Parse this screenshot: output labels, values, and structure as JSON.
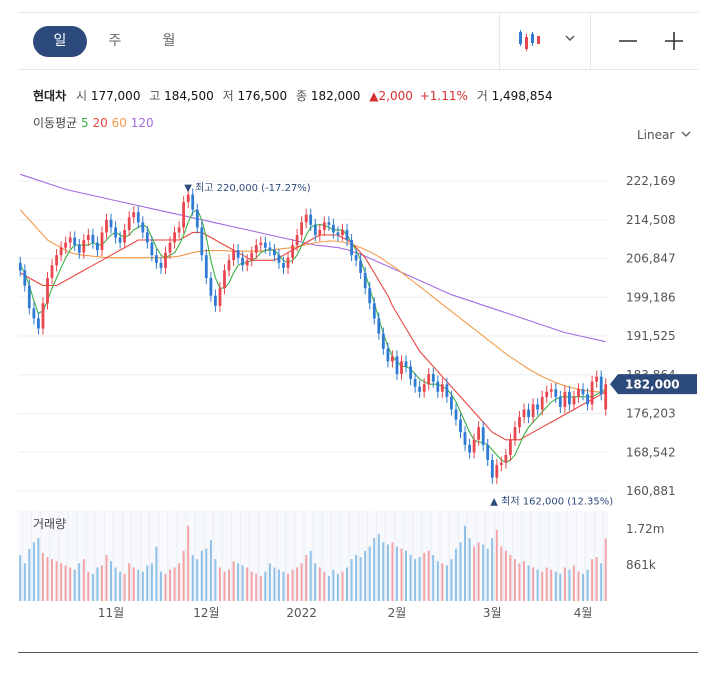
{
  "tabs": [
    "일",
    "주",
    "월"
  ],
  "active_tab": 0,
  "toolbar": {
    "chart_icon": "candlestick-icon",
    "dropdown_icon": "chevron-down-icon",
    "zoom_out_icon": "minus-icon",
    "zoom_in_icon": "plus-icon"
  },
  "stock": {
    "name": "현대차",
    "open_label": "시",
    "open": "177,000",
    "high_label": "고",
    "high": "184,500",
    "low_label": "저",
    "low": "176,500",
    "close_label": "종",
    "close": "182,000",
    "change": "▲2,000",
    "change_pct": "+1.11%",
    "volume_label": "거",
    "volume": "1,498,854"
  },
  "ma_legend": {
    "title": "이동평균",
    "items": [
      {
        "label": "5",
        "color": "#3cb043"
      },
      {
        "label": "20",
        "color": "#e8463c"
      },
      {
        "label": "60",
        "color": "#f39a4a"
      },
      {
        "label": "120",
        "color": "#a46be0"
      }
    ]
  },
  "scale_label": "Linear",
  "colors": {
    "up": "#e8474f",
    "down": "#2f7ad3",
    "badge": "#2d4a7c",
    "ma5": "#3cb043",
    "ma20": "#e8463c",
    "ma60": "#f39a4a",
    "ma120": "#a46be0",
    "vol_up": "#f3a3a6",
    "vol_down": "#8ec0e8"
  },
  "chart_data": {
    "type": "candlestick",
    "y_ticks": [
      "222,169",
      "214,508",
      "206,847",
      "199,186",
      "191,525",
      "183,864",
      "176,203",
      "168,542",
      "160,881"
    ],
    "ylim": [
      160881,
      222169
    ],
    "x_ticks": [
      "11월",
      "12월",
      "2022",
      "2월",
      "3월",
      "4월"
    ],
    "current_price": "182,000",
    "annotations": {
      "high_prefix": "▼ 최고",
      "high": "220,000 (-17.27%)",
      "low_prefix": "▲ 최저",
      "low": "162,000 (12.35%)"
    },
    "closes": [
      204500,
      201500,
      197000,
      195000,
      193000,
      198000,
      203000,
      205500,
      207500,
      209000,
      210000,
      211000,
      209500,
      208000,
      210500,
      211500,
      210000,
      208500,
      212000,
      214500,
      213000,
      211000,
      210000,
      212500,
      215000,
      216000,
      214000,
      212000,
      210000,
      207500,
      206000,
      205000,
      208000,
      210000,
      212000,
      213000,
      218000,
      219500,
      216500,
      213000,
      207500,
      203000,
      199500,
      197500,
      201000,
      204500,
      206500,
      208500,
      207000,
      205500,
      206500,
      208000,
      209500,
      210000,
      209000,
      208500,
      207500,
      206000,
      205000,
      207000,
      209500,
      211500,
      214000,
      215500,
      213500,
      211500,
      212500,
      214000,
      213500,
      212000,
      211500,
      212500,
      210500,
      207500,
      206500,
      204000,
      201000,
      198000,
      195000,
      192000,
      189000,
      186500,
      187500,
      184000,
      186500,
      185500,
      183000,
      181500,
      180500,
      182000,
      184000,
      182500,
      180500,
      182000,
      179500,
      177000,
      175000,
      172500,
      170000,
      168500,
      171000,
      173500,
      170000,
      167000,
      163500,
      166000,
      166500,
      168000,
      171000,
      173500,
      175500,
      177000,
      175500,
      178000,
      177000,
      179500,
      180500,
      181000,
      179500,
      177500,
      180500,
      178000,
      179500,
      181000,
      180000,
      178000,
      182500,
      183500,
      180000,
      182000
    ],
    "opens": [
      206000,
      204500,
      201500,
      197000,
      195000,
      193000,
      198000,
      203000,
      205500,
      207500,
      209000,
      210000,
      211000,
      209500,
      208000,
      210500,
      211500,
      210000,
      208500,
      212000,
      214500,
      213000,
      211000,
      210000,
      212500,
      215000,
      216000,
      214000,
      212000,
      210000,
      207500,
      206000,
      205000,
      208000,
      210000,
      212000,
      213000,
      218000,
      219500,
      216500,
      213000,
      207500,
      203000,
      199500,
      197500,
      201000,
      204500,
      206500,
      208500,
      207000,
      205500,
      206500,
      208000,
      209500,
      210000,
      209000,
      208500,
      207500,
      206000,
      205000,
      207000,
      209500,
      211500,
      214000,
      215500,
      213500,
      211500,
      212500,
      214000,
      213500,
      212000,
      211500,
      212500,
      210500,
      207500,
      206500,
      204000,
      201000,
      198000,
      195000,
      192000,
      189000,
      186500,
      187500,
      184000,
      186500,
      185500,
      183000,
      181500,
      180500,
      182000,
      184000,
      182500,
      180500,
      182000,
      179500,
      177000,
      175000,
      172500,
      170000,
      168500,
      171000,
      173500,
      170000,
      167000,
      163500,
      166000,
      166500,
      168000,
      171000,
      173500,
      175500,
      177000,
      175500,
      178000,
      177000,
      179500,
      180500,
      181000,
      179500,
      177500,
      180500,
      178000,
      179500,
      181000,
      180000,
      178000,
      182500,
      183500,
      177000
    ],
    "ma5": [
      205500,
      204000,
      201500,
      198500,
      196000,
      196500,
      198500,
      201000,
      203000,
      205000,
      207000,
      208500,
      209500,
      209500,
      209500,
      209500,
      210000,
      209500,
      209500,
      210500,
      211500,
      212000,
      211500,
      211000,
      211500,
      212500,
      213000,
      213500,
      213000,
      211000,
      209000,
      207500,
      207000,
      207500,
      208000,
      209500,
      211500,
      214000,
      216000,
      216500,
      214500,
      211000,
      206500,
      203000,
      201000,
      201000,
      202000,
      204000,
      205500,
      206000,
      206000,
      206500,
      207000,
      208000,
      208500,
      208500,
      208500,
      207500,
      206500,
      206000,
      206500,
      207500,
      209500,
      211500,
      213000,
      213500,
      213500,
      213500,
      213000,
      212500,
      212500,
      212500,
      211500,
      210000,
      208500,
      206500,
      204000,
      201000,
      198000,
      195000,
      192000,
      189500,
      187500,
      186500,
      185500,
      185500,
      185000,
      184000,
      183000,
      182500,
      182000,
      182000,
      182000,
      181500,
      181000,
      180000,
      178500,
      176500,
      174500,
      172500,
      171000,
      170500,
      170500,
      170000,
      169000,
      168000,
      167000,
      166500,
      167000,
      168000,
      170000,
      172000,
      173500,
      174500,
      175500,
      176500,
      177500,
      178500,
      179000,
      179500,
      179500,
      179500,
      179500,
      179500,
      179500,
      179500,
      179500,
      180000,
      180500,
      181000
    ],
    "ma20": [
      204000,
      203500,
      203000,
      202500,
      202000,
      201500,
      201500,
      201500,
      201500,
      202000,
      202500,
      203000,
      203500,
      204000,
      204500,
      205000,
      205500,
      206000,
      206500,
      207000,
      207500,
      208000,
      208500,
      209000,
      209500,
      210000,
      210500,
      210500,
      210500,
      210500,
      210500,
      210500,
      210500,
      210500,
      210500,
      210500,
      211000,
      211500,
      212000,
      212000,
      212000,
      211500,
      211000,
      210500,
      210000,
      209500,
      209000,
      208500,
      208000,
      207500,
      207000,
      206500,
      206500,
      206500,
      206500,
      206500,
      206500,
      207000,
      207500,
      208000,
      208500,
      209000,
      209500,
      210000,
      210500,
      211000,
      211500,
      211500,
      211500,
      211500,
      211500,
      211000,
      210500,
      210000,
      209000,
      208000,
      207000,
      205500,
      204000,
      202500,
      201000,
      199500,
      197500,
      196000,
      194500,
      193000,
      191500,
      190000,
      188500,
      187500,
      186500,
      185500,
      184500,
      183500,
      182500,
      181500,
      180500,
      179500,
      178500,
      177500,
      176500,
      175500,
      174500,
      173500,
      172500,
      172000,
      171500,
      171000,
      171000,
      171000,
      171000,
      171500,
      172000,
      172500,
      173000,
      173500,
      174000,
      174500,
      175000,
      175500,
      176000,
      176500,
      177000,
      177500,
      178000,
      178500,
      179000,
      179500,
      180000,
      180500
    ],
    "ma60": [
      216500,
      215500,
      214500,
      213500,
      212500,
      211500,
      210500,
      210000,
      209500,
      209000,
      208500,
      208000,
      207800,
      207600,
      207500,
      207400,
      207300,
      207200,
      207100,
      207000,
      207000,
      207000,
      207000,
      207000,
      207000,
      207000,
      207000,
      207000,
      207000,
      207000,
      207000,
      207000,
      207000,
      207100,
      207200,
      207300,
      207500,
      207800,
      208000,
      208200,
      208300,
      208400,
      208400,
      208400,
      208400,
      208400,
      208300,
      208300,
      208300,
      208300,
      208300,
      208300,
      208300,
      208300,
      208400,
      208500,
      208600,
      208700,
      208800,
      208900,
      209000,
      209200,
      209400,
      209600,
      209800,
      210000,
      210100,
      210200,
      210300,
      210300,
      210200,
      210100,
      209900,
      209600,
      209300,
      209000,
      208600,
      208200,
      207700,
      207200,
      206600,
      206000,
      205400,
      204800,
      204100,
      203400,
      202700,
      202000,
      201300,
      200600,
      199900,
      199200,
      198500,
      197800,
      197100,
      196400,
      195700,
      195000,
      194300,
      193600,
      192900,
      192200,
      191500,
      190800,
      190100,
      189400,
      188700,
      188000,
      187400,
      186800,
      186200,
      185600,
      185000,
      184500,
      184000,
      183500,
      183100,
      182700,
      182300,
      182000,
      181700,
      181400,
      181200,
      181000,
      180800,
      180700,
      180600,
      180500,
      180500,
      180500
    ],
    "ma120": [
      223500,
      223200,
      222900,
      222600,
      222300,
      222000,
      221700,
      221400,
      221100,
      220800,
      220500,
      220300,
      220100,
      219900,
      219700,
      219500,
      219300,
      219100,
      218900,
      218700,
      218500,
      218300,
      218100,
      217900,
      217700,
      217500,
      217300,
      217100,
      216900,
      216700,
      216500,
      216300,
      216100,
      215900,
      215700,
      215500,
      215300,
      215100,
      214900,
      214700,
      214500,
      214300,
      214100,
      213900,
      213700,
      213500,
      213300,
      213100,
      212900,
      212700,
      212500,
      212300,
      212100,
      211900,
      211700,
      211500,
      211300,
      211100,
      210900,
      210700,
      210500,
      210300,
      210100,
      209900,
      209700,
      209500,
      209400,
      209300,
      209200,
      209100,
      209000,
      208800,
      208600,
      208300,
      208000,
      207700,
      207300,
      206900,
      206500,
      206100,
      205700,
      205300,
      204900,
      204500,
      204100,
      203700,
      203300,
      202900,
      202500,
      202100,
      201700,
      201300,
      200900,
      200500,
      200100,
      199700,
      199400,
      199100,
      198800,
      198500,
      198200,
      197900,
      197600,
      197300,
      197000,
      196700,
      196400,
      196100,
      195800,
      195500,
      195200,
      194900,
      194600,
      194300,
      194000,
      193700,
      193400,
      193100,
      192800,
      192500,
      192200,
      192000,
      191800,
      191600,
      191400,
      191200,
      191000,
      190800,
      190600,
      190400
    ],
    "volume": {
      "y_ticks": [
        "1.72m",
        "861k"
      ],
      "ylim": [
        0,
        2150000
      ],
      "values": [
        1100000,
        900000,
        1250000,
        1400000,
        1500000,
        1150000,
        1050000,
        1000000,
        950000,
        900000,
        850000,
        800000,
        750000,
        900000,
        1000000,
        700000,
        650000,
        800000,
        850000,
        1100000,
        950000,
        800000,
        700000,
        650000,
        900000,
        800000,
        750000,
        700000,
        850000,
        900000,
        1300000,
        700000,
        650000,
        750000,
        800000,
        900000,
        1200000,
        1800000,
        1100000,
        1000000,
        1200000,
        1250000,
        1450000,
        1000000,
        800000,
        700000,
        750000,
        950000,
        900000,
        850000,
        800000,
        700000,
        650000,
        600000,
        700000,
        900000,
        800000,
        750000,
        700000,
        650000,
        750000,
        800000,
        900000,
        1100000,
        1200000,
        900000,
        800000,
        700000,
        600000,
        750000,
        650000,
        700000,
        800000,
        1000000,
        1100000,
        1050000,
        1200000,
        1300000,
        1500000,
        1600000,
        1400000,
        1350000,
        1400000,
        1300000,
        1250000,
        1200000,
        1100000,
        1000000,
        1050000,
        1150000,
        1200000,
        1100000,
        950000,
        900000,
        850000,
        1000000,
        1250000,
        1400000,
        1800000,
        1500000,
        1300000,
        1400000,
        1350000,
        1250000,
        1500000,
        1700000,
        1300000,
        1200000,
        1100000,
        1000000,
        900000,
        950000,
        850000,
        800000,
        750000,
        700000,
        800000,
        750000,
        700000,
        650000,
        800000,
        750000,
        850000,
        700000,
        650000,
        750000,
        1000000,
        1050000,
        900000,
        1498854
      ]
    }
  }
}
